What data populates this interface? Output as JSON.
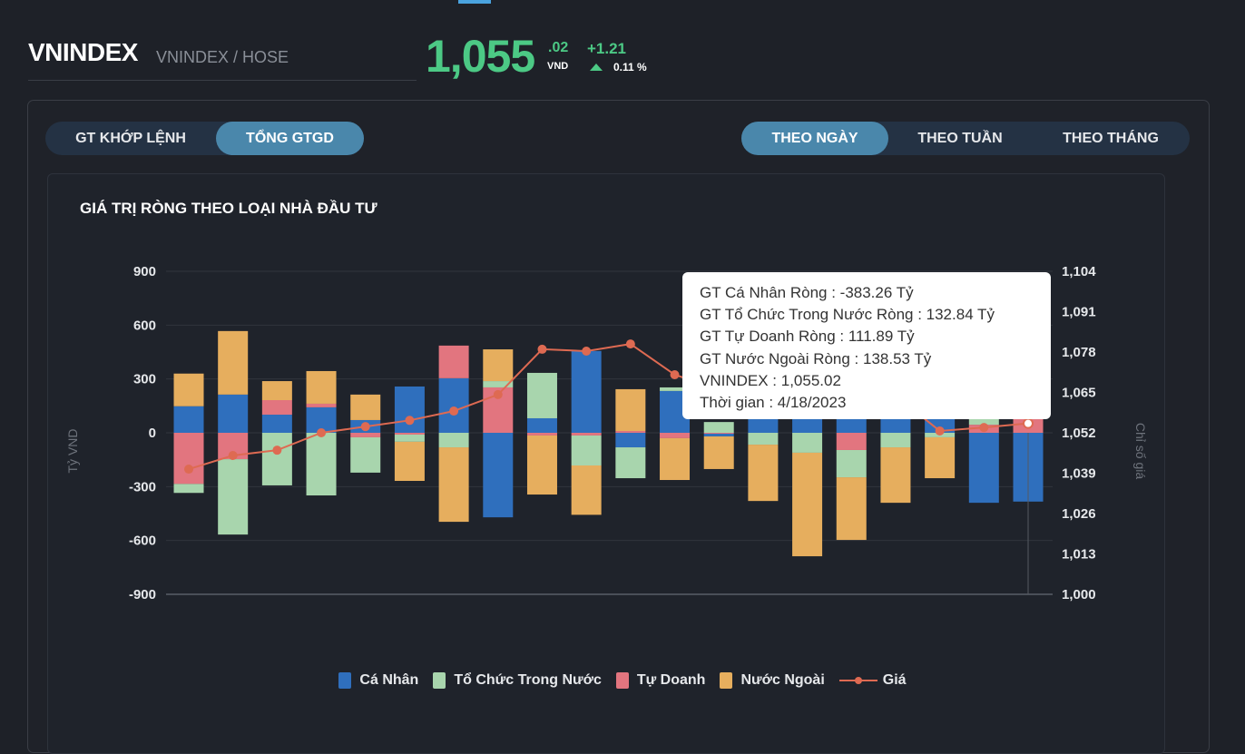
{
  "header": {
    "symbol": "VNINDEX",
    "subtitle": "VNINDEX / HOSE",
    "price_int": "1,055",
    "price_dec": ".02",
    "currency": "VND",
    "change": "+1.21",
    "change_pct": "0.11 %"
  },
  "value_tabs": [
    {
      "label": "GT KHỚP LỆNH",
      "active": false
    },
    {
      "label": "TỔNG GTGD",
      "active": true
    }
  ],
  "period_tabs": [
    {
      "label": "THEO NGÀY",
      "active": true
    },
    {
      "label": "THEO TUẦN",
      "active": false
    },
    {
      "label": "THEO THÁNG",
      "active": false
    }
  ],
  "tooltip": {
    "lines": [
      "GT Cá Nhân Ròng  : -383.26 Tỷ",
      "GT Tổ Chức Trong Nước Ròng : 132.84 Tỷ",
      "GT Tự Doanh Ròng : 111.89 Tỷ",
      "GT Nước Ngoài Ròng : 138.53 Tỷ",
      "VNINDEX : 1,055.02",
      "Thời gian : 4/18/2023"
    ]
  },
  "colors": {
    "ca_nhan": "#2f6fbd",
    "to_chuc": "#a8d5ad",
    "tu_doanh": "#e2757f",
    "nuoc_ngoai": "#e6ae5e",
    "gia": "#de6a52",
    "up": "#4cc985"
  },
  "chart_data": {
    "type": "bar",
    "title": "GIÁ TRỊ RÒNG THEO LOẠI NHÀ ĐẦU TƯ",
    "ylabel": "Tỷ VND",
    "y2label": "Chỉ số giá",
    "ylim": [
      -900,
      900
    ],
    "y_ticks": [
      "900",
      "600",
      "300",
      "0",
      "-300",
      "-600",
      "-900"
    ],
    "y2lim": [
      1000,
      1104
    ],
    "y2_ticks": [
      "1,104",
      "1,091",
      "1,078",
      "1,065",
      "1,052",
      "1,039",
      "1,026",
      "1,013",
      "1,000"
    ],
    "grid": true,
    "legend_position": "bottom",
    "last_date": "4/18/2023",
    "series": [
      {
        "key": "ca_nhan",
        "name": "Cá Nhân",
        "type": "bar",
        "values": [
          148,
          213,
          101,
          142,
          71,
          258,
          304,
          -471,
          81,
          456,
          -81,
          233,
          -15,
          180,
          150,
          120,
          140,
          100,
          -390,
          -383.26
        ]
      },
      {
        "key": "to_chuc",
        "name": "Tổ Chức Trong Nước",
        "type": "bar",
        "values": [
          -50,
          -420,
          -293,
          -349,
          -197,
          -40,
          -81,
          35,
          253,
          -167,
          -172,
          20,
          60,
          -66,
          -111,
          -152,
          -81,
          -25,
          80,
          132.84
        ]
      },
      {
        "key": "tu_doanh",
        "name": "Tự Doanh",
        "type": "bar",
        "values": [
          -285,
          -147,
          81,
          20,
          -25,
          -10,
          182,
          253,
          -15,
          -15,
          10,
          -30,
          -5,
          0,
          0,
          -96,
          0,
          0,
          45,
          111.89
        ]
      },
      {
        "key": "nuoc_ngoai",
        "name": "Nước Ngoài",
        "type": "bar",
        "values": [
          182,
          354,
          106,
          182,
          142,
          -218,
          -415,
          177,
          -329,
          -275,
          233,
          -233,
          -182,
          -314,
          -577,
          -349,
          -309,
          -228,
          30,
          138.53
        ]
      },
      {
        "key": "gia",
        "name": "Giá",
        "type": "line",
        "axis": "right",
        "values": [
          1040.3,
          1044.7,
          1046.4,
          1052,
          1054,
          1056,
          1059,
          1064.3,
          1078.9,
          1078.3,
          1080.6,
          1070.7,
          1066,
          1070,
          1068,
          1072,
          1064,
          1052.6,
          1053.7,
          1055.02
        ]
      }
    ]
  }
}
